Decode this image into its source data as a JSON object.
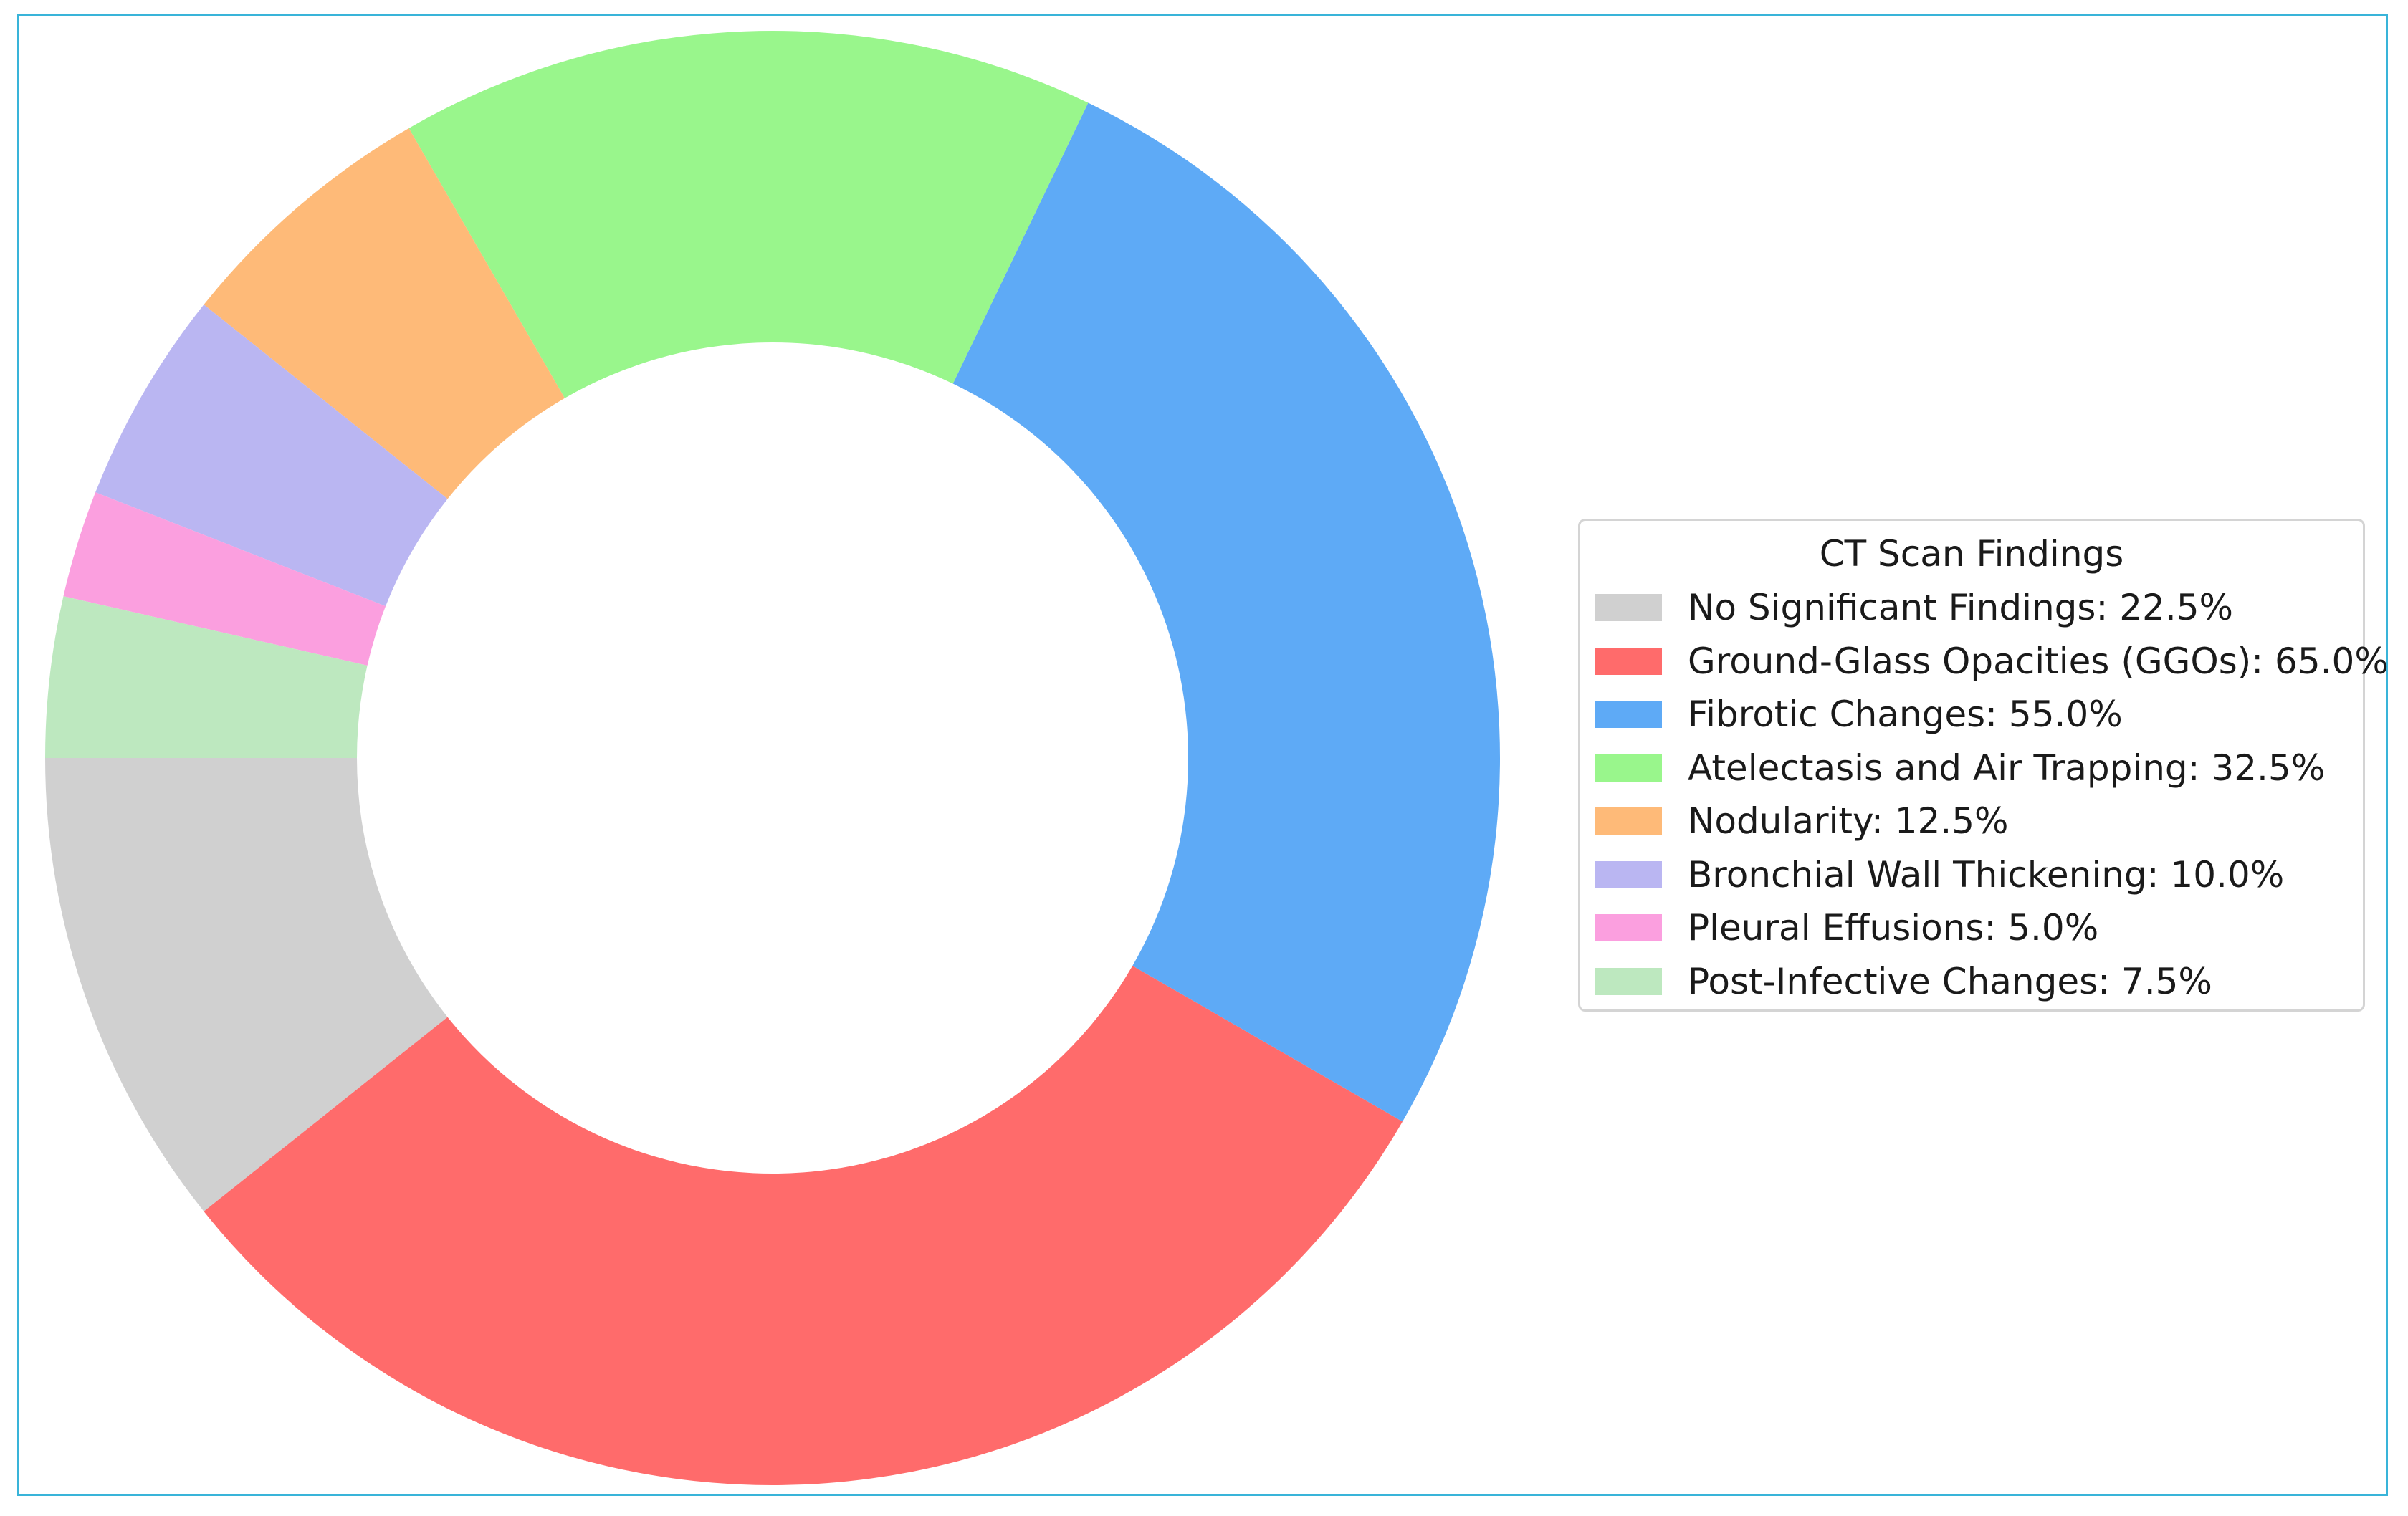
{
  "chart_data": {
    "type": "pie",
    "style": "donut",
    "legend": {
      "title": "CT Scan Findings",
      "placement": "right"
    },
    "slices": [
      {
        "label": "No Significant Findings",
        "value": 22.5,
        "display": "No Significant Findings: 22.5%",
        "color": "#d0d0d0"
      },
      {
        "label": "Ground-Glass Opacities (GGOs)",
        "value": 65.0,
        "display": "Ground-Glass Opacities (GGOs): 65.0%",
        "color": "#ff6b6b"
      },
      {
        "label": "Fibrotic Changes",
        "value": 55.0,
        "display": "Fibrotic Changes: 55.0%",
        "color": "#5eaaf6"
      },
      {
        "label": "Atelectasis and Air Trapping",
        "value": 32.5,
        "display": "Atelectasis and Air Trapping: 32.5%",
        "color": "#99f68c"
      },
      {
        "label": "Nodularity",
        "value": 12.5,
        "display": "Nodularity: 12.5%",
        "color": "#feba78"
      },
      {
        "label": "Bronchial Wall Thickening",
        "value": 10.0,
        "display": "Bronchial Wall Thickening: 10.0%",
        "color": "#bab6f2"
      },
      {
        "label": "Pleural Effusions",
        "value": 5.0,
        "display": "Pleural Effusions: 5.0%",
        "color": "#fb9fdf"
      },
      {
        "label": "Post-Infective Changes",
        "value": 7.5,
        "display": "Post-Infective Changes: 7.5%",
        "color": "#bde8bf"
      }
    ],
    "start_angle_deg": 180,
    "direction": "counterclockwise"
  }
}
